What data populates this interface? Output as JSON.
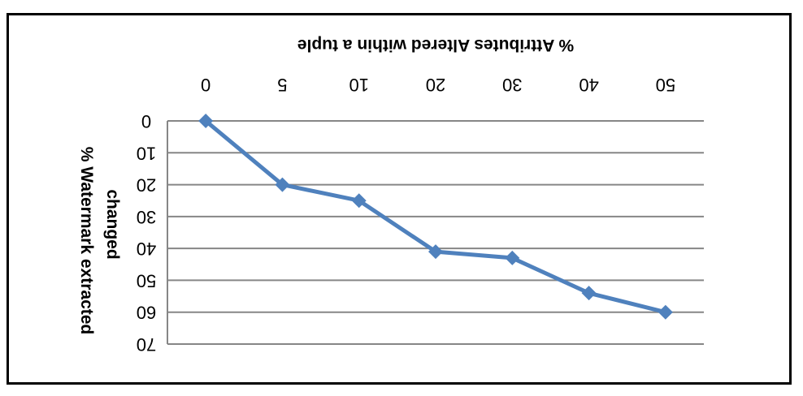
{
  "chart_data": {
    "type": "line",
    "title": "",
    "xlabel": "% Attributes  Altered within a tuple",
    "ylabel_lines": [
      "% Watermark  extracted",
      "changed"
    ],
    "categories": [
      "0",
      "5",
      "10",
      "20",
      "30",
      "40",
      "50"
    ],
    "y_ticks": [
      "0",
      "10",
      "20",
      "30",
      "40",
      "50",
      "60",
      "70"
    ],
    "ylim": [
      0,
      70
    ],
    "y_inverted": true,
    "x_axis_position": "top",
    "rendering": "whole figure rotated 180 degrees",
    "grid": true,
    "legend": "none",
    "series": [
      {
        "values": [
          0,
          20,
          25,
          41,
          43,
          54,
          60
        ]
      }
    ],
    "colors": {
      "line": "#4F81BD",
      "marker": "#4F81BD",
      "grid": "#868686",
      "axis": "#868686"
    }
  }
}
